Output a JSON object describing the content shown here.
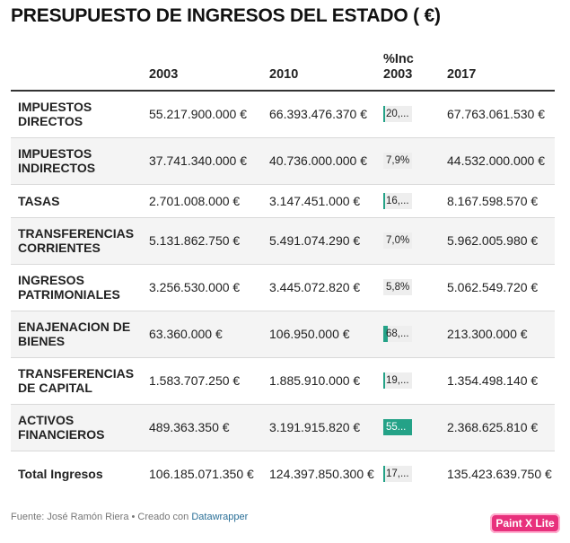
{
  "title": "PRESUPUESTO DE INGRESOS DEL ESTADO ( €)",
  "table": {
    "headers": [
      "",
      "2003",
      "2010",
      "%Inc 2003",
      "2017"
    ],
    "rows": [
      {
        "label": "IMPUESTOS DIRECTOS",
        "y2003": "55.217.900.000 €",
        "y2010": "66.393.476.370 €",
        "inc_text": "20,...",
        "inc_value": 20.2,
        "y2017": "67.763.061.530 €"
      },
      {
        "label": "IMPUESTOS INDIRECTOS",
        "y2003": "37.741.340.000 €",
        "y2010": "40.736.000.000 €",
        "inc_text": "7,9%",
        "inc_value": 7.9,
        "y2017": "44.532.000.000 €"
      },
      {
        "label": "TASAS",
        "y2003": "2.701.008.000 €",
        "y2010": "3.147.451.000 €",
        "inc_text": "16,...",
        "inc_value": 16.5,
        "y2017": "8.167.598.570 €"
      },
      {
        "label": "TRANSFERENCIAS CORRIENTES",
        "y2003": "5.131.862.750 €",
        "y2010": "5.491.074.290 €",
        "inc_text": "7,0%",
        "inc_value": 7.0,
        "y2017": "5.962.005.980 €"
      },
      {
        "label": "INGRESOS PATRIMONIALES",
        "y2003": "3.256.530.000 €",
        "y2010": "3.445.072.820 €",
        "inc_text": "5,8%",
        "inc_value": 5.8,
        "y2017": "5.062.549.720 €"
      },
      {
        "label": "ENAJENACION DE BIENES",
        "y2003": "63.360.000 €",
        "y2010": "106.950.000 €",
        "inc_text": "68,...",
        "inc_value": 68.8,
        "y2017": "213.300.000 €"
      },
      {
        "label": "TRANSFERENCIAS DE CAPITAL",
        "y2003": "1.583.707.250 €",
        "y2010": "1.885.910.000 €",
        "inc_text": "19,...",
        "inc_value": 19.1,
        "y2017": "1.354.498.140 €"
      },
      {
        "label": "ACTIVOS FINANCIEROS",
        "y2003": "489.363.350 €",
        "y2010": "3.191.915.820 €",
        "inc_text": "55...",
        "inc_value": 552.0,
        "y2017": "2.368.625.810 €"
      },
      {
        "label": "Total Ingresos",
        "y2003": "106.185.071.350 €",
        "y2010": "124.397.850.300 €",
        "inc_text": "17,...",
        "inc_value": 17.2,
        "y2017": "135.423.639.750 €"
      }
    ]
  },
  "footer": {
    "source": "Fuente: José Ramón Riera • Creado con ",
    "link": "Datawrapper"
  },
  "badge": "Paint X Lite",
  "colors": {
    "bar": "#24a287",
    "row_shade": "#f4f4f4",
    "badge": "#e8307c",
    "link": "#2a6f97"
  }
}
